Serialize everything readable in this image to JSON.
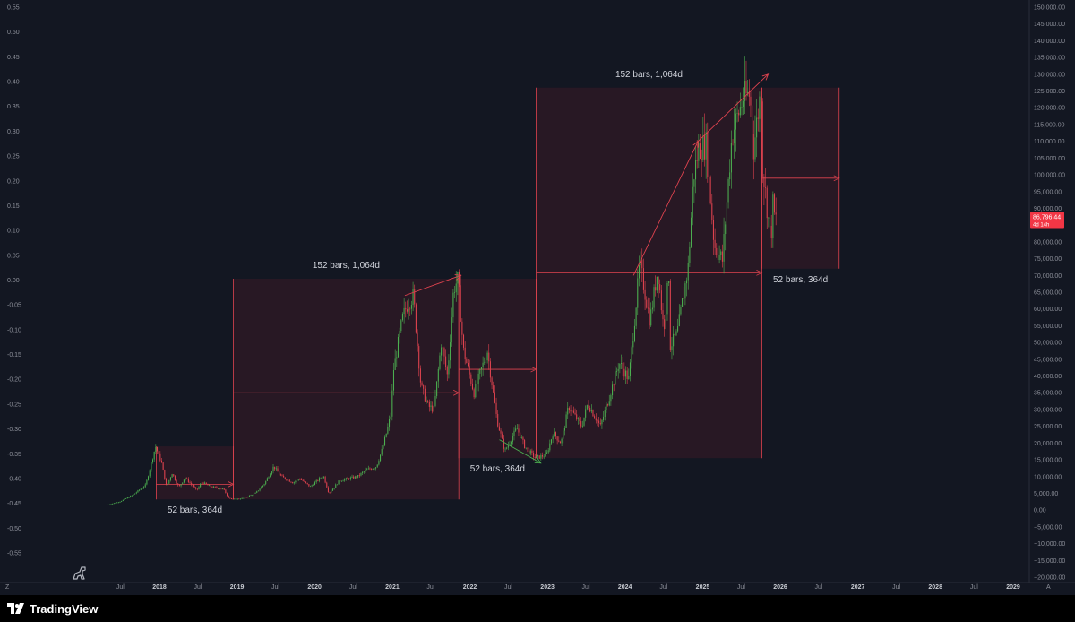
{
  "chart_data": {
    "type": "candlestick",
    "y_axis_left": {
      "min": -0.55,
      "max": 0.55,
      "ticks": [
        "0.55",
        "0.50",
        "0.45",
        "0.40",
        "0.35",
        "0.30",
        "0.25",
        "0.20",
        "0.15",
        "0.10",
        "0.05",
        "0.00",
        "-0.05",
        "-0.10",
        "-0.15",
        "-0.20",
        "-0.25",
        "-0.30",
        "-0.35",
        "-0.40",
        "-0.45",
        "-0.50",
        "-0.55"
      ]
    },
    "y_axis_right": {
      "min": -20000,
      "max": 150000,
      "ticks": [
        "150,000.00",
        "145,000.00",
        "140,000.00",
        "135,000.00",
        "130,000.00",
        "125,000.00",
        "120,000.00",
        "115,000.00",
        "110,000.00",
        "105,000.00",
        "100,000.00",
        "95,000.00",
        "90,000.00",
        "85,000.00",
        "80,000.00",
        "75,000.00",
        "70,000.00",
        "65,000.00",
        "60,000.00",
        "55,000.00",
        "50,000.00",
        "45,000.00",
        "40,000.00",
        "35,000.00",
        "30,000.00",
        "25,000.00",
        "20,000.00",
        "15,000.00",
        "10,000.00",
        "5,000.00",
        "0.00",
        "−5,000.00",
        "−10,000.00",
        "−15,000.00",
        "−20,000.00"
      ]
    },
    "x_axis": {
      "ticks": [
        {
          "label": "Jul",
          "date": "2017-07-01",
          "year": false
        },
        {
          "label": "2018",
          "date": "2018-01-01",
          "year": true
        },
        {
          "label": "Jul",
          "date": "2018-07-01",
          "year": false
        },
        {
          "label": "2019",
          "date": "2019-01-01",
          "year": true
        },
        {
          "label": "Jul",
          "date": "2019-07-01",
          "year": false
        },
        {
          "label": "2020",
          "date": "2020-01-01",
          "year": true
        },
        {
          "label": "Jul",
          "date": "2020-07-01",
          "year": false
        },
        {
          "label": "2021",
          "date": "2021-01-01",
          "year": true
        },
        {
          "label": "Jul",
          "date": "2021-07-01",
          "year": false
        },
        {
          "label": "2022",
          "date": "2022-01-01",
          "year": true
        },
        {
          "label": "Jul",
          "date": "2022-07-01",
          "year": false
        },
        {
          "label": "2023",
          "date": "2023-01-01",
          "year": true
        },
        {
          "label": "Jul",
          "date": "2023-07-01",
          "year": false
        },
        {
          "label": "2024",
          "date": "2024-01-01",
          "year": true
        },
        {
          "label": "Jul",
          "date": "2024-07-01",
          "year": false
        },
        {
          "label": "2025",
          "date": "2025-01-01",
          "year": true
        },
        {
          "label": "Jul",
          "date": "2025-07-01",
          "year": false
        },
        {
          "label": "2026",
          "date": "2026-01-01",
          "year": true
        },
        {
          "label": "Jul",
          "date": "2026-07-01",
          "year": false
        },
        {
          "label": "2027",
          "date": "2027-01-01",
          "year": true
        },
        {
          "label": "Jul",
          "date": "2027-07-01",
          "year": false
        },
        {
          "label": "2028",
          "date": "2028-01-01",
          "year": true
        },
        {
          "label": "Jul",
          "date": "2028-07-01",
          "year": false
        },
        {
          "label": "2029",
          "date": "2029-01-01",
          "year": true
        }
      ]
    },
    "price_series": [
      [
        "2017-05-01",
        1500
      ],
      [
        "2017-07-01",
        2500
      ],
      [
        "2017-09-01",
        4500
      ],
      [
        "2017-11-01",
        7500
      ],
      [
        "2017-12-17",
        19000
      ],
      [
        "2018-01-15",
        14000
      ],
      [
        "2018-02-06",
        7000
      ],
      [
        "2018-03-05",
        11000
      ],
      [
        "2018-04-06",
        6800
      ],
      [
        "2018-05-05",
        9700
      ],
      [
        "2018-06-28",
        5900
      ],
      [
        "2018-07-24",
        8300
      ],
      [
        "2018-09-01",
        7000
      ],
      [
        "2018-11-01",
        6300
      ],
      [
        "2018-11-25",
        3800
      ],
      [
        "2018-12-15",
        3200
      ],
      [
        "2019-02-01",
        3500
      ],
      [
        "2019-04-01",
        5000
      ],
      [
        "2019-05-15",
        8000
      ],
      [
        "2019-06-26",
        13000
      ],
      [
        "2019-08-01",
        10000
      ],
      [
        "2019-09-25",
        8200
      ],
      [
        "2019-10-26",
        9400
      ],
      [
        "2019-12-15",
        7000
      ],
      [
        "2020-02-15",
        10300
      ],
      [
        "2020-03-12",
        5000
      ],
      [
        "2020-05-01",
        8800
      ],
      [
        "2020-07-25",
        10000
      ],
      [
        "2020-09-01",
        11900
      ],
      [
        "2020-10-21",
        13000
      ],
      [
        "2020-11-20",
        18500
      ],
      [
        "2020-12-31",
        29000
      ],
      [
        "2021-01-08",
        41000
      ],
      [
        "2021-02-21",
        57000
      ],
      [
        "2021-03-13",
        61000
      ],
      [
        "2021-04-14",
        64000
      ],
      [
        "2021-05-19",
        37000
      ],
      [
        "2021-06-22",
        31000
      ],
      [
        "2021-07-20",
        30000
      ],
      [
        "2021-08-23",
        50000
      ],
      [
        "2021-09-21",
        40000
      ],
      [
        "2021-10-20",
        66000
      ],
      [
        "2021-11-10",
        69000
      ],
      [
        "2021-12-04",
        48000
      ],
      [
        "2022-01-24",
        35000
      ],
      [
        "2022-03-28",
        47500
      ],
      [
        "2022-05-12",
        27000
      ],
      [
        "2022-06-18",
        17600
      ],
      [
        "2022-08-14",
        24400
      ],
      [
        "2022-09-20",
        19000
      ],
      [
        "2022-11-09",
        15500
      ],
      [
        "2022-12-31",
        16500
      ],
      [
        "2023-01-31",
        23000
      ],
      [
        "2023-03-10",
        20000
      ],
      [
        "2023-04-14",
        30900
      ],
      [
        "2023-06-15",
        25000
      ],
      [
        "2023-07-13",
        31800
      ],
      [
        "2023-09-11",
        25000
      ],
      [
        "2023-10-24",
        34000
      ],
      [
        "2023-12-08",
        44000
      ],
      [
        "2024-01-23",
        39000
      ],
      [
        "2024-02-28",
        63000
      ],
      [
        "2024-03-14",
        73700
      ],
      [
        "2024-05-01",
        56500
      ],
      [
        "2024-06-07",
        71900
      ],
      [
        "2024-07-05",
        53700
      ],
      [
        "2024-07-29",
        70000
      ],
      [
        "2024-08-05",
        49000
      ],
      [
        "2024-09-06",
        52500
      ],
      [
        "2024-10-29",
        73000
      ],
      [
        "2024-11-22",
        99500
      ],
      [
        "2024-12-17",
        108000
      ],
      [
        "2025-01-20",
        109000
      ],
      [
        "2025-02-28",
        79000
      ],
      [
        "2025-04-07",
        74500
      ],
      [
        "2025-05-22",
        111900
      ],
      [
        "2025-07-14",
        123000
      ],
      [
        "2025-08-14",
        124000
      ],
      [
        "2025-09-01",
        108000
      ],
      [
        "2025-10-06",
        126000
      ],
      [
        "2025-10-10",
        104000
      ],
      [
        "2025-11-21",
        80500
      ],
      [
        "2025-12-01",
        91000
      ],
      [
        "2025-12-10",
        86796
      ]
    ],
    "current_price": {
      "label": "86,796.44",
      "sublabel": "4d 14h",
      "value": 86796.44
    },
    "annotations": {
      "cycle_boxes": [
        {
          "x1": "2017-12-17",
          "x2": "2018-12-15",
          "y1": 3200,
          "y2": 19000,
          "mid": 7700,
          "label": "52 bars, 364d"
        },
        {
          "x1": "2018-12-15",
          "x2": "2021-11-10",
          "y1": 3200,
          "y2": 69000,
          "mid": 35000,
          "label": "152 bars, 1,064d"
        },
        {
          "x1": "2021-11-10",
          "x2": "2022-11-09",
          "y1": 15500,
          "y2": 69000,
          "mid": 42000,
          "label": "52 bars, 364d"
        },
        {
          "x1": "2022-11-09",
          "x2": "2025-10-06",
          "y1": 15500,
          "y2": 126000,
          "mid": 70800,
          "label": "152 bars, 1,064d"
        },
        {
          "x1": "2025-10-06",
          "x2": "2026-10-05",
          "y1": 72000,
          "y2": 126000,
          "mid": 99000,
          "label": "52 bars, 364d"
        }
      ],
      "trend_arrows": [
        {
          "from": [
            "2021-03-01",
            64000
          ],
          "to": [
            "2021-11-20",
            70000
          ]
        },
        {
          "from": [
            "2022-05-20",
            21000
          ],
          "to": [
            "2022-12-01",
            14000
          ]
        },
        {
          "from": [
            "2024-02-10",
            70000
          ],
          "to": [
            "2024-12-10",
            110000
          ]
        },
        {
          "from": [
            "2024-12-10",
            110000
          ],
          "to": [
            "2025-11-05",
            130000
          ]
        }
      ]
    }
  },
  "ui": {
    "brand_name": "TradingView",
    "corner_left_label": "Z",
    "corner_right_label": "A"
  }
}
